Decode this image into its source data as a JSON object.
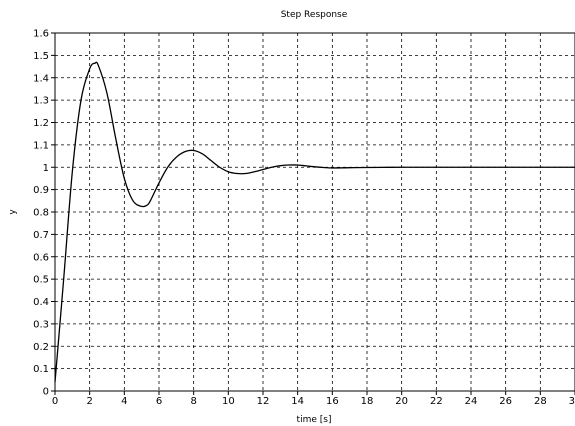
{
  "chart_data": {
    "type": "line",
    "title": "Step Response",
    "xlabel": "time [s]",
    "ylabel": "y",
    "xlim": [
      0,
      30
    ],
    "ylim": [
      0,
      1.6
    ],
    "x_ticks": [
      0,
      2,
      4,
      6,
      8,
      10,
      12,
      14,
      16,
      18,
      20,
      22,
      24,
      26,
      28,
      30
    ],
    "x_tick_labels": [
      "0",
      "2",
      "4",
      "6",
      "8",
      "10",
      "12",
      "14",
      "16",
      "18",
      "20",
      "22",
      "24",
      "26",
      "28",
      "30"
    ],
    "y_ticks": [
      0,
      0.1,
      0.2,
      0.3,
      0.4,
      0.5,
      0.6,
      0.7,
      0.8,
      0.9,
      1,
      1.1,
      1.2,
      1.3,
      1.4,
      1.5,
      1.6
    ],
    "y_tick_labels": [
      "0",
      "0.1",
      "0.2",
      "0.3",
      "0.4",
      "0.5",
      "0.6",
      "0.7",
      "0.8",
      "0.9",
      "1",
      "1.1",
      "1.2",
      "1.3",
      "1.4",
      "1.5",
      "1.6"
    ],
    "grid": true,
    "grid_style": "dashed",
    "line_color": "#000000",
    "series": [
      {
        "x": [
          0,
          0.5,
          1,
          1.5,
          2,
          2.3,
          2.5,
          3,
          3.5,
          4,
          4.5,
          5,
          5.3,
          5.5,
          6,
          6.5,
          7,
          7.5,
          8,
          8.5,
          9,
          9.5,
          10,
          10.5,
          11,
          11.5,
          12,
          12.5,
          13,
          13.5,
          14,
          14.5,
          15,
          15.5,
          16,
          17,
          18,
          20,
          22,
          24,
          26,
          28,
          30
        ],
        "y": [
          0.04,
          0.5,
          0.98,
          1.3,
          1.44,
          1.465,
          1.455,
          1.33,
          1.13,
          0.95,
          0.85,
          0.825,
          0.83,
          0.85,
          0.93,
          1.0,
          1.045,
          1.07,
          1.075,
          1.06,
          1.03,
          1.0,
          0.98,
          0.972,
          0.972,
          0.98,
          0.99,
          1.0,
          1.007,
          1.01,
          1.01,
          1.006,
          1.002,
          0.999,
          0.997,
          0.998,
          0.999,
          1.0,
          1.0,
          1.0,
          1.0,
          1.0,
          1.0
        ]
      }
    ]
  }
}
